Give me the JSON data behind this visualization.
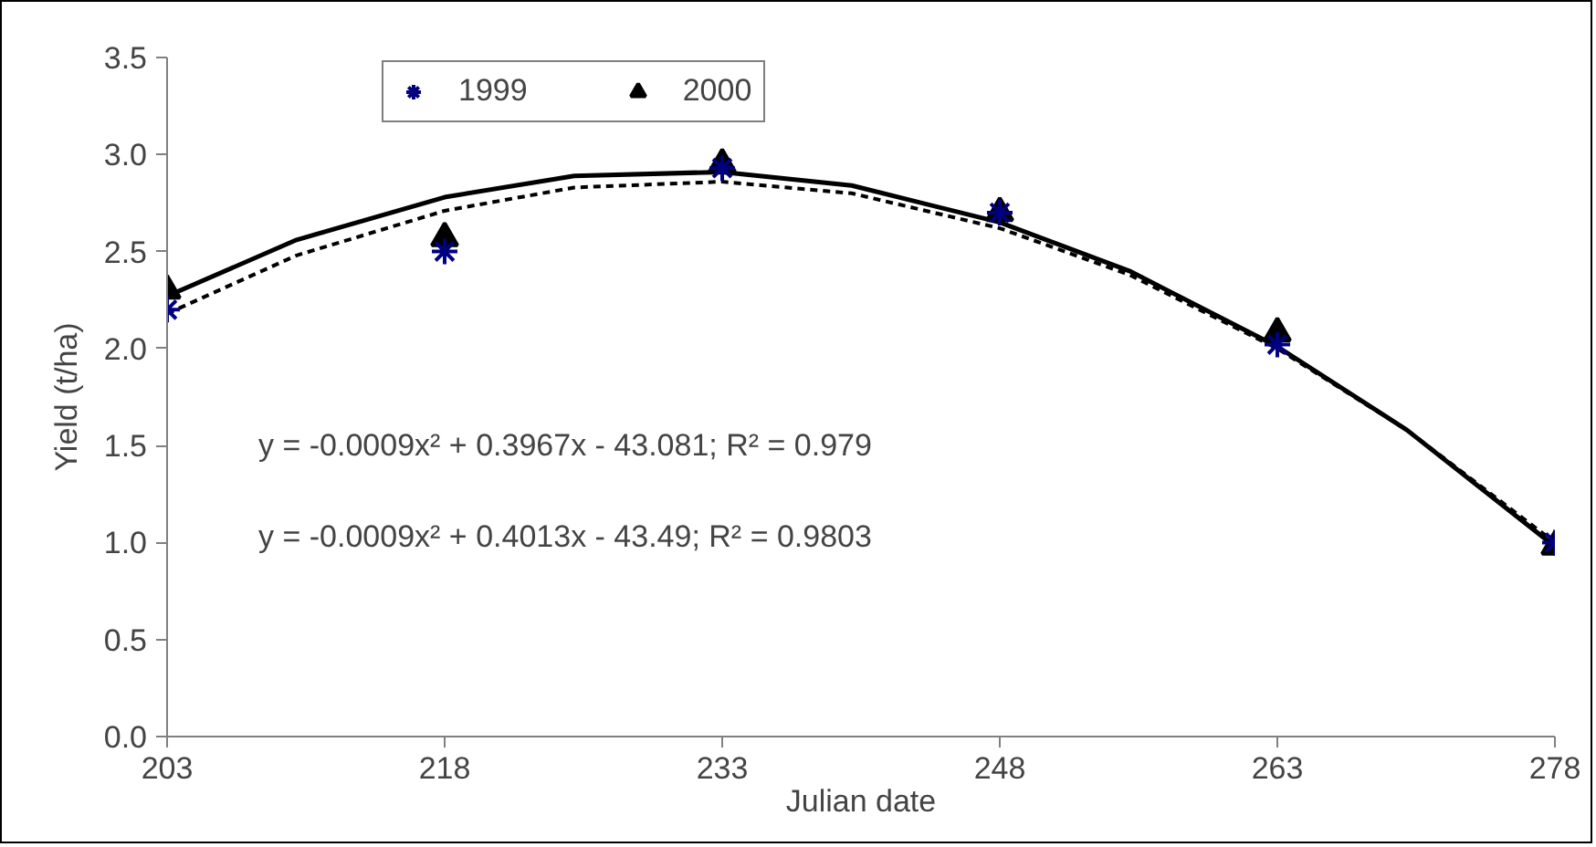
{
  "chart_data": {
    "type": "scatter",
    "xlabel": "Julian date",
    "ylabel": "Yield (t/ha)",
    "x": [
      203,
      218,
      233,
      248,
      263,
      278
    ],
    "series": [
      {
        "name": "1999",
        "color": "#000080",
        "marker": "cross",
        "values": [
          2.2,
          2.5,
          2.93,
          2.7,
          2.02,
          1.0
        ]
      },
      {
        "name": "2000",
        "color": "#000000",
        "marker": "triangle",
        "values": [
          2.3,
          2.57,
          2.95,
          2.7,
          2.08,
          0.98
        ]
      },
      {
        "type": "line",
        "color": "#000000",
        "line_style": "dashed",
        "marker": "none",
        "x": [
          203,
          210,
          218,
          225,
          233,
          240,
          248,
          255,
          263,
          270,
          278
        ],
        "values": [
          2.18,
          2.48,
          2.71,
          2.83,
          2.86,
          2.8,
          2.62,
          2.38,
          2.0,
          1.58,
          1.0
        ]
      },
      {
        "type": "line",
        "color": "#000000",
        "line_style": "solid",
        "marker": "none",
        "x": [
          203,
          210,
          218,
          225,
          233,
          240,
          248,
          255,
          263,
          270,
          278
        ],
        "values": [
          2.27,
          2.56,
          2.78,
          2.89,
          2.91,
          2.84,
          2.65,
          2.4,
          2.01,
          1.58,
          0.98
        ]
      }
    ],
    "annotations": [
      "y = -0.0009x² + 0.3967x - 43.081; R² = 0.979",
      "y = -0.0009x² + 0.4013x - 43.49; R² = 0.9803"
    ],
    "xlim": [
      203,
      278
    ],
    "xticks": [
      203,
      218,
      233,
      248,
      263,
      278
    ],
    "ylim": [
      0,
      3.5
    ],
    "yticks": [
      {
        "value": 0,
        "label": "0.0"
      },
      0.5,
      {
        "value": 1,
        "label": "1.0"
      },
      1.5,
      {
        "value": 2,
        "label": "2.0"
      },
      2.5,
      {
        "value": 3,
        "label": "3.0"
      },
      3.5
    ],
    "grid": false,
    "legend": "top left"
  }
}
